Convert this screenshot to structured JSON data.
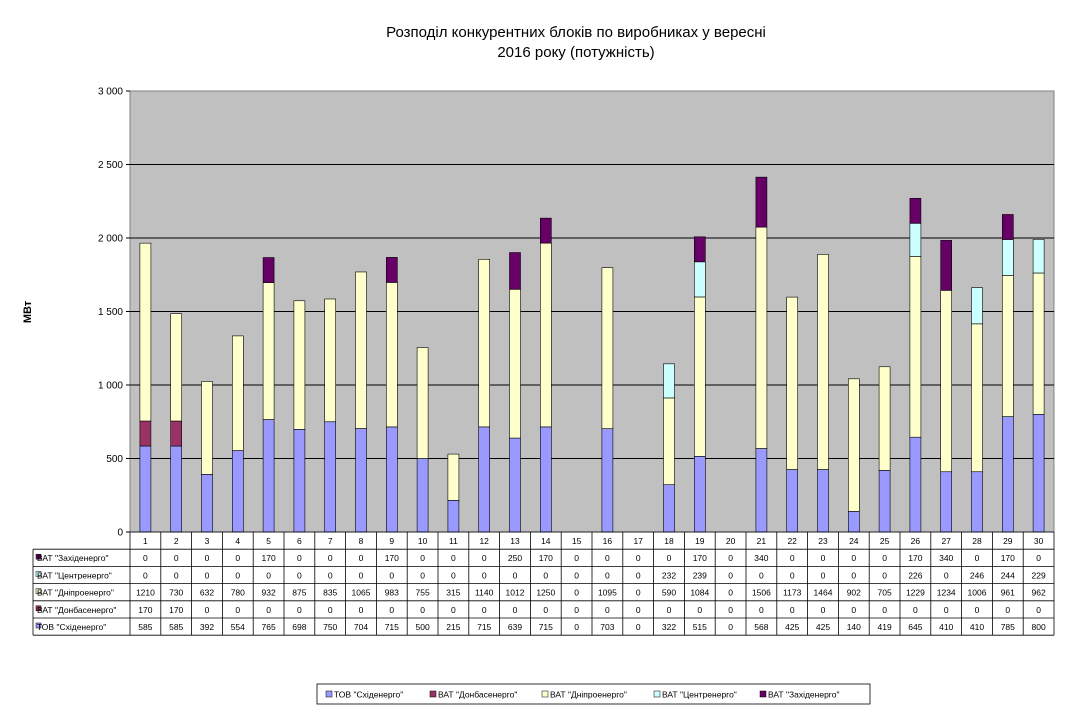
{
  "chart_data": {
    "type": "bar",
    "stacked": true,
    "title_lines": [
      "Розподіл конкурентних  блоків по виробниках  у вересні",
      "2016 року  (потужність)"
    ],
    "ylabel": "МВт",
    "xlabel": "",
    "ylim": [
      0,
      3000
    ],
    "yticks": [
      "0",
      "500",
      "1 000",
      "1 500",
      "2 000",
      "2 500",
      "3 000"
    ],
    "ytick_values": [
      0,
      500,
      1000,
      1500,
      2000,
      2500,
      3000
    ],
    "grid": true,
    "legend_position": "bottom",
    "categories": [
      "1",
      "2",
      "3",
      "4",
      "5",
      "6",
      "7",
      "8",
      "9",
      "10",
      "11",
      "12",
      "13",
      "14",
      "15",
      "16",
      "17",
      "18",
      "19",
      "20",
      "21",
      "22",
      "23",
      "24",
      "25",
      "26",
      "27",
      "28",
      "29",
      "30"
    ],
    "series": [
      {
        "name": "ТОВ \"Східенерго\"",
        "color": "#9999ff",
        "values": [
          585,
          585,
          392,
          554,
          765,
          698,
          750,
          704,
          715,
          500,
          215,
          715,
          639,
          715,
          0,
          703,
          0,
          322,
          515,
          0,
          568,
          425,
          425,
          140,
          419,
          645,
          410,
          410,
          785,
          800
        ]
      },
      {
        "name": "ВАТ \"Донбасенерго\"",
        "color": "#993366",
        "values": [
          170,
          170,
          0,
          0,
          0,
          0,
          0,
          0,
          0,
          0,
          0,
          0,
          0,
          0,
          0,
          0,
          0,
          0,
          0,
          0,
          0,
          0,
          0,
          0,
          0,
          0,
          0,
          0,
          0,
          0
        ]
      },
      {
        "name": "ВАТ \"Дніпроенерго\"",
        "color": "#ffffcc",
        "values": [
          1210,
          730,
          632,
          780,
          932,
          875,
          835,
          1065,
          983,
          755,
          315,
          1140,
          1012,
          1250,
          0,
          1095,
          0,
          590,
          1084,
          0,
          1506,
          1173,
          1464,
          902,
          705,
          1229,
          1234,
          1006,
          961,
          962
        ]
      },
      {
        "name": "ВАТ \"Центренерго\"",
        "color": "#ccffff",
        "values": [
          0,
          0,
          0,
          0,
          0,
          0,
          0,
          0,
          0,
          0,
          0,
          0,
          0,
          0,
          0,
          0,
          0,
          232,
          239,
          0,
          0,
          0,
          0,
          0,
          0,
          226,
          0,
          246,
          244,
          229
        ]
      },
      {
        "name": "ВАТ \"Західенерго\"",
        "color": "#660066",
        "values": [
          0,
          0,
          0,
          0,
          170,
          0,
          0,
          0,
          170,
          0,
          0,
          0,
          250,
          170,
          0,
          0,
          0,
          0,
          170,
          0,
          340,
          0,
          0,
          0,
          0,
          170,
          340,
          0,
          170,
          0
        ]
      }
    ],
    "table_row_order": [
      4,
      3,
      2,
      1,
      0
    ],
    "colors": {
      "plot_bg": "#c0c0c0",
      "grid": "#000000",
      "border": "#808080"
    }
  }
}
